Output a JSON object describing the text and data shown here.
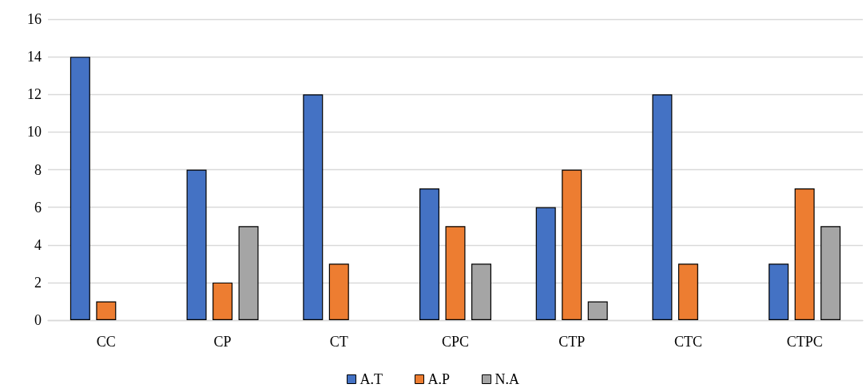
{
  "chart_data": {
    "type": "bar",
    "categories": [
      "CC",
      "CP",
      "CT",
      "CPC",
      "CTP",
      "CTC",
      "CTPC"
    ],
    "series": [
      {
        "name": "A.T",
        "color": "#4472c4",
        "values": [
          14,
          8,
          12,
          7,
          6,
          12,
          3
        ]
      },
      {
        "name": "A.P",
        "color": "#ed7d31",
        "values": [
          1,
          2,
          3,
          5,
          8,
          3,
          7
        ]
      },
      {
        "name": "N.A",
        "color": "#a5a5a5",
        "values": [
          0,
          5,
          0,
          3,
          1,
          0,
          5
        ]
      }
    ],
    "ylim": [
      0,
      16
    ],
    "yticks": [
      0,
      2,
      4,
      6,
      8,
      10,
      12,
      14,
      16
    ],
    "grid": "y",
    "legend": "bottom"
  }
}
